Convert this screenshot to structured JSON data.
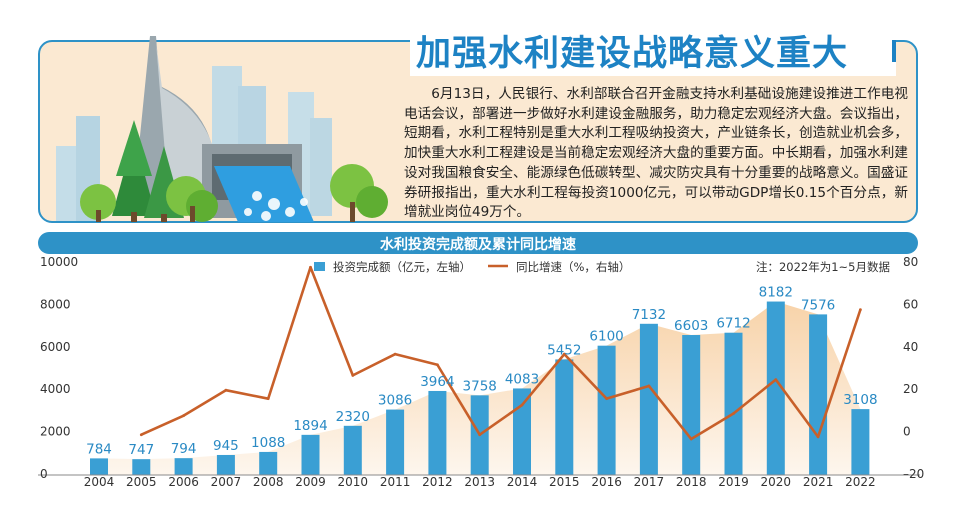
{
  "headline": "加强水利建设战略意义重大",
  "article": "6月13日，人民银行、水利部联合召开金融支持水利基础设施建设推进工作电视电话会议，部署进一步做好水利建设金融服务，助力稳定宏观经济大盘。会议指出，短期看，水利工程特别是重大水利工程吸纳投资大，产业链条长，创造就业机会多，加快重大水利工程建设是当前稳定宏观经济大盘的重要方面。中长期看，加强水利建设对我国粮食安全、能源绿色低碳转型、减灾防灾具有十分重要的战略意义。国盛证券研报指出，重大水利工程每投资1000亿元，可以带动GDP增长0.15个百分点，新增就业岗位49万个。",
  "colors": {
    "accent": "#2e92c7",
    "bar": "#3a9fd4",
    "line": "#c8602a",
    "fill": "#f5c48c",
    "card": "#fbe9d2"
  },
  "chart_data": {
    "type": "bar",
    "title": "水利投资完成额及累计同比增速",
    "note": "注：2022年为1~5月数据",
    "categories": [
      "2004",
      "2005",
      "2006",
      "2007",
      "2008",
      "2009",
      "2010",
      "2011",
      "2012",
      "2013",
      "2014",
      "2015",
      "2016",
      "2017",
      "2018",
      "2019",
      "2020",
      "2021",
      "2022"
    ],
    "series": [
      {
        "name": "投资完成额（亿元，左轴）",
        "type": "bar",
        "axis": "left",
        "values": [
          784,
          747,
          794,
          945,
          1088,
          1894,
          2320,
          3086,
          3964,
          3758,
          4083,
          5452,
          6100,
          7132,
          6603,
          6712,
          8182,
          7576,
          3108
        ]
      },
      {
        "name": "同比增速（%，右轴）",
        "type": "line",
        "axis": "right",
        "values": [
          null,
          -1,
          8,
          20,
          16,
          78,
          27,
          37,
          32,
          -1,
          13,
          37,
          16,
          22,
          -3,
          9,
          25,
          -2,
          58
        ]
      }
    ],
    "left_axis": {
      "ticks": [
        "0",
        "2000",
        "4000",
        "6000",
        "8000",
        "10000"
      ],
      "range": [
        0,
        10000
      ]
    },
    "right_axis": {
      "ticks": [
        "–20",
        "0",
        "20",
        "40",
        "60",
        "80"
      ],
      "range": [
        -20,
        80
      ]
    },
    "legend": "top-center"
  }
}
